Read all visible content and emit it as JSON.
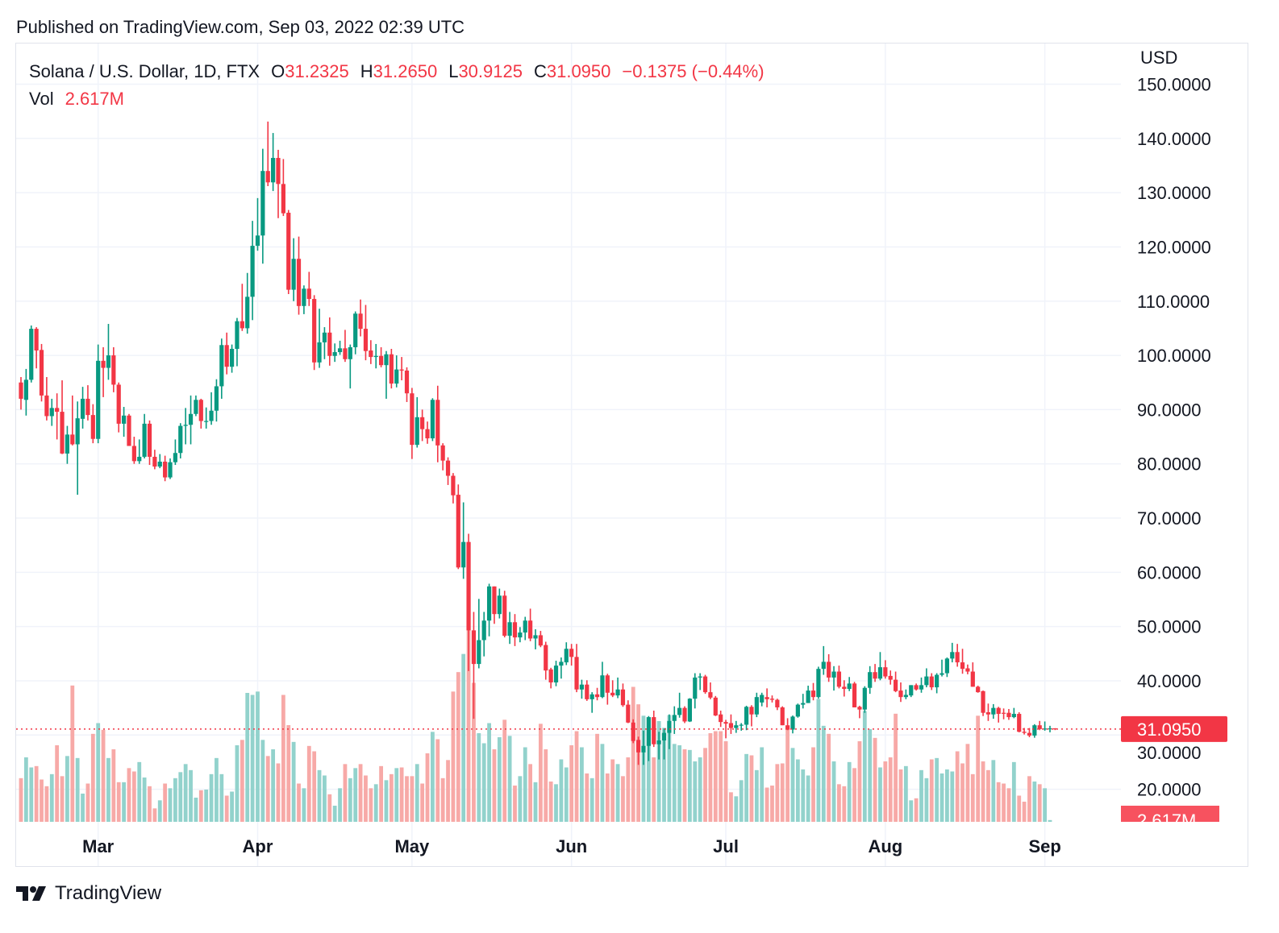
{
  "header": {
    "published": "Published on TradingView.com, Sep 03, 2022 02:39 UTC"
  },
  "legend": {
    "symbol": "Solana / U.S. Dollar, 1D, FTX",
    "open_label": "O",
    "open": "31.2325",
    "high_label": "H",
    "high": "31.2650",
    "low_label": "L",
    "low": "30.9125",
    "close_label": "C",
    "close": "31.0950",
    "change": "−0.1375 (−0.44%)",
    "vol_label": "Vol",
    "vol": "2.617M"
  },
  "price_axis": {
    "currency": "USD",
    "last_price_badge": "31.0950",
    "last_volume_badge": "2.617M"
  },
  "footer": {
    "brand": "TradingView"
  },
  "colors": {
    "up": "#089981",
    "down": "#f23645",
    "up_volume": "#92d2cc",
    "down_volume": "#f7a9a7",
    "grid": "#f0f3fa",
    "text": "#131722"
  },
  "chart_data": {
    "type": "candlestick",
    "title": "Solana / U.S. Dollar, 1D, FTX",
    "first_date": "2022-02-14",
    "last_date": "2022-09-03",
    "interval": "1D",
    "ylim": [
      14,
      157.5
    ],
    "y_ticks": [
      20,
      30,
      40,
      50,
      60,
      70,
      80,
      90,
      100,
      110,
      120,
      130,
      140,
      150
    ],
    "y_tick_labels": [
      "20.0000",
      "30.0000",
      "40.0000",
      "50.0000",
      "60.0000",
      "70.0000",
      "80.0000",
      "90.0000",
      "100.0000",
      "110.0000",
      "120.0000",
      "130.0000",
      "140.0000",
      "150.0000"
    ],
    "x_ticks": [
      {
        "label": "Mar",
        "index": 15
      },
      {
        "label": "Apr",
        "index": 46
      },
      {
        "label": "May",
        "index": 76
      },
      {
        "label": "Jun",
        "index": 107
      },
      {
        "label": "Jul",
        "index": 137
      },
      {
        "label": "Aug",
        "index": 168
      },
      {
        "label": "Sep",
        "index": 199
      }
    ],
    "grid": true,
    "last_price": 31.095,
    "ohlc": [
      [
        95,
        96,
        90,
        92
      ],
      [
        91.8,
        97.5,
        88.9,
        95.5
      ],
      [
        95.5,
        105.5,
        95,
        104.9
      ],
      [
        104.9,
        105.2,
        97.6,
        100.9
      ],
      [
        101,
        102.1,
        91.5,
        92.6
      ],
      [
        92.6,
        96,
        88,
        88.8
      ],
      [
        88.8,
        92,
        87,
        90.3
      ],
      [
        90.3,
        93,
        84.5,
        89.6
      ],
      [
        89.6,
        95.4,
        81.8,
        81.9
      ],
      [
        81.9,
        87,
        80,
        85.4
      ],
      [
        85.4,
        92.6,
        83.4,
        83.6
      ],
      [
        83.6,
        91.5,
        74.3,
        88.4
      ],
      [
        88.3,
        94.2,
        86.5,
        92
      ],
      [
        92,
        94.5,
        88,
        89
      ],
      [
        89,
        91,
        83.8,
        84.6
      ],
      [
        84.6,
        102,
        83.8,
        99
      ],
      [
        99,
        101.5,
        92.3,
        97.7
      ],
      [
        97.7,
        105.8,
        95.5,
        100
      ],
      [
        100,
        101.5,
        93.2,
        94.6
      ],
      [
        94.6,
        95,
        85.8,
        87.4
      ],
      [
        87.4,
        90.5,
        85,
        88.9
      ],
      [
        88.9,
        89.2,
        84,
        83.3
      ],
      [
        83.3,
        85,
        80,
        80.5
      ],
      [
        80.5,
        84.5,
        80,
        81.3
      ],
      [
        81.3,
        89.2,
        81,
        87.4
      ],
      [
        87.4,
        88,
        79.8,
        81.3
      ],
      [
        81.3,
        82.6,
        79,
        79.5
      ],
      [
        79.5,
        81.8,
        79.2,
        80.4
      ],
      [
        80.4,
        81.5,
        76.8,
        77.5
      ],
      [
        77.5,
        81,
        77.2,
        80.3
      ],
      [
        80.3,
        84.5,
        79.8,
        82
      ],
      [
        82,
        87.5,
        81,
        87
      ],
      [
        87,
        90.3,
        83.6,
        87.2
      ],
      [
        87.2,
        92.6,
        83.6,
        89.2
      ],
      [
        89.2,
        92.6,
        88.8,
        91.8
      ],
      [
        91.8,
        92,
        86.5,
        87.9
      ],
      [
        87.9,
        90.4,
        86.5,
        87.9
      ],
      [
        87.9,
        93.2,
        87.2,
        89.8
      ],
      [
        89.8,
        95.6,
        87.8,
        94.3
      ],
      [
        94.3,
        103.1,
        92,
        101.9
      ],
      [
        101.9,
        104.2,
        96.5,
        97.9
      ],
      [
        97.9,
        102,
        96.8,
        101.2
      ],
      [
        101.2,
        106.9,
        98,
        106.3
      ],
      [
        106.3,
        113.2,
        104.5,
        105
      ],
      [
        105,
        115.2,
        104,
        110.8
      ],
      [
        110.8,
        124.8,
        106.5,
        120.2
      ],
      [
        120.2,
        129,
        119.3,
        122.1
      ],
      [
        122.1,
        138.1,
        116.9,
        134
      ],
      [
        134,
        143.1,
        131.2,
        131.9
      ],
      [
        131.9,
        141,
        130.3,
        136.4
      ],
      [
        136.4,
        137.9,
        125.3,
        131.6
      ],
      [
        131.6,
        136.2,
        125.7,
        126.2
      ],
      [
        126.3,
        126.8,
        111.3,
        112.1
      ],
      [
        112.1,
        121.6,
        110,
        117.8
      ],
      [
        117.8,
        121.9,
        107.5,
        109.1
      ],
      [
        109.1,
        112.9,
        107.6,
        112.3
      ],
      [
        112.3,
        115.4,
        109.1,
        110.4
      ],
      [
        110.4,
        111.1,
        97.3,
        98.7
      ],
      [
        98.7,
        108.6,
        97.7,
        102.4
      ],
      [
        102.4,
        105.2,
        99.3,
        104.2
      ],
      [
        104.2,
        107,
        98.1,
        99.9
      ],
      [
        99.9,
        102.2,
        98.8,
        100.6
      ],
      [
        100.6,
        102.7,
        100.1,
        101.3
      ],
      [
        101.3,
        104.7,
        98.8,
        99.3
      ],
      [
        99.3,
        102,
        93.9,
        101.5
      ],
      [
        101.5,
        108.1,
        100.2,
        107.7
      ],
      [
        107.7,
        110.3,
        103.5,
        104.9
      ],
      [
        104.9,
        109.3,
        99.1,
        100.8
      ],
      [
        100.9,
        102.8,
        98.4,
        99.7
      ],
      [
        99.7,
        102.1,
        97.6,
        99.9
      ],
      [
        99.9,
        101.5,
        97.8,
        98.2
      ],
      [
        98.2,
        100.8,
        92,
        100.2
      ],
      [
        100.2,
        101.2,
        93.9,
        94.8
      ],
      [
        94.8,
        100,
        94.1,
        97.4
      ],
      [
        97.4,
        99.7,
        95.4,
        97.2
      ],
      [
        97.2,
        97.8,
        91.4,
        93
      ],
      [
        93,
        94,
        80.9,
        83.5
      ],
      [
        83.5,
        92.3,
        83,
        88.6
      ],
      [
        88.6,
        90,
        84.2,
        86.4
      ],
      [
        86.4,
        87.8,
        83.7,
        84.7
      ],
      [
        84.7,
        92.1,
        84.2,
        91.8
      ],
      [
        91.8,
        94.4,
        80.3,
        83.4
      ],
      [
        83.4,
        83.8,
        78.8,
        80.6
      ],
      [
        80.6,
        81.2,
        76.1,
        77.8
      ],
      [
        77.8,
        78.3,
        72.7,
        74.2
      ],
      [
        74.3,
        76.2,
        60.6,
        60.9
      ],
      [
        60.9,
        72.9,
        58.8,
        65.6
      ],
      [
        65.6,
        67.1,
        41.8,
        49.3
      ],
      [
        49.3,
        52.7,
        33,
        43.1
      ],
      [
        43.1,
        55.1,
        42.3,
        47.5
      ],
      [
        47.5,
        52.7,
        44.5,
        51.1
      ],
      [
        51.1,
        57.9,
        48.2,
        57.4
      ],
      [
        57.4,
        57.4,
        50.5,
        52.3
      ],
      [
        52.3,
        57,
        51.5,
        55.7
      ],
      [
        55.7,
        56.6,
        48,
        48.3
      ],
      [
        48.3,
        52.7,
        46.8,
        50.8
      ],
      [
        50.8,
        52.3,
        46.4,
        48
      ],
      [
        48,
        49.9,
        47.1,
        48.9
      ],
      [
        48.9,
        51.8,
        47.5,
        51.1
      ],
      [
        51.1,
        53.3,
        47.3,
        47.8
      ],
      [
        47.8,
        49.5,
        45.8,
        48.4
      ],
      [
        48.4,
        49.2,
        46.2,
        46.5
      ],
      [
        46.6,
        47.2,
        40.2,
        41.9
      ],
      [
        42.1,
        42.4,
        38.6,
        39.7
      ],
      [
        39.7,
        43.7,
        39,
        42.8
      ],
      [
        42.8,
        44.3,
        40.4,
        43.5
      ],
      [
        43.4,
        47.1,
        42.9,
        45.9
      ],
      [
        45.9,
        46.8,
        42.8,
        44.4
      ],
      [
        44.4,
        46.8,
        37.9,
        38.4
      ],
      [
        38.4,
        40.2,
        36.7,
        39.3
      ],
      [
        39.3,
        40.1,
        36.3,
        36.6
      ],
      [
        36.6,
        37.9,
        34.1,
        37.5
      ],
      [
        37.5,
        38.7,
        36.4,
        37
      ],
      [
        37,
        43.5,
        36.8,
        41
      ],
      [
        41,
        41.3,
        35.6,
        37.8
      ],
      [
        37.8,
        40.1,
        37,
        37.3
      ],
      [
        37.3,
        40.6,
        36.8,
        38.4
      ],
      [
        38.4,
        39.5,
        35.2,
        35.5
      ],
      [
        35.6,
        36.4,
        32.2,
        32.3
      ],
      [
        32.3,
        32.9,
        28.5,
        28.9
      ],
      [
        29.1,
        29.7,
        24.5,
        26.8
      ],
      [
        26.8,
        30.8,
        24.5,
        28
      ],
      [
        28,
        33.5,
        25.2,
        33.3
      ],
      [
        33.3,
        34.5,
        27.8,
        28.3
      ],
      [
        28.3,
        30.6,
        25.5,
        29
      ],
      [
        29,
        31.2,
        25.5,
        30.4
      ],
      [
        30.4,
        33.8,
        27.4,
        32.6
      ],
      [
        32.6,
        35.3,
        30.2,
        33.7
      ],
      [
        33.7,
        37.8,
        33.2,
        35
      ],
      [
        35,
        35.3,
        32.2,
        32.5
      ],
      [
        32.5,
        36.8,
        32.4,
        36.7
      ],
      [
        36.7,
        41.4,
        34.9,
        40.6
      ],
      [
        40.6,
        41.4,
        38.3,
        40.8
      ],
      [
        40.8,
        41.1,
        37.6,
        37.9
      ],
      [
        37.9,
        39.7,
        36.6,
        36.9
      ],
      [
        36.9,
        37.2,
        33.5,
        33.6
      ],
      [
        33.8,
        34.5,
        31.5,
        32.4
      ],
      [
        32.4,
        32.8,
        29.4,
        32.1
      ],
      [
        32.2,
        33.8,
        30.2,
        31.3
      ],
      [
        31.3,
        32.6,
        30.4,
        31.8
      ],
      [
        31.8,
        32.2,
        30.8,
        31.9
      ],
      [
        31.9,
        35.4,
        30.9,
        35.2
      ],
      [
        35.2,
        35.5,
        31.6,
        33.8
      ],
      [
        33.8,
        37.8,
        33.3,
        37
      ],
      [
        36,
        37.8,
        35.3,
        37.4
      ],
      [
        37,
        38.6,
        35.1,
        36.6
      ],
      [
        36.7,
        37.3,
        36,
        36.5
      ],
      [
        36.5,
        36.7,
        34.6,
        35.1
      ],
      [
        35.1,
        35.3,
        31.8,
        31.8
      ],
      [
        31.8,
        33.1,
        30.9,
        31
      ],
      [
        31,
        33.6,
        30.3,
        33.4
      ],
      [
        33.4,
        35.8,
        33.2,
        35.6
      ],
      [
        35.6,
        37.6,
        34.9,
        35.9
      ],
      [
        35.9,
        39.1,
        35.9,
        38.2
      ],
      [
        38.2,
        39.6,
        36.4,
        37
      ],
      [
        37,
        42.6,
        36.7,
        42.2
      ],
      [
        42.2,
        46.4,
        41.1,
        43.5
      ],
      [
        43.5,
        44.9,
        39.8,
        40.6
      ],
      [
        40.6,
        42.7,
        38.2,
        41.7
      ],
      [
        41.7,
        42.8,
        38.6,
        38.9
      ],
      [
        38.9,
        40.1,
        37.1,
        38.5
      ],
      [
        38.5,
        40.7,
        38.1,
        39.5
      ],
      [
        39.5,
        39.8,
        35.1,
        35.1
      ],
      [
        35.2,
        35.4,
        33.1,
        34.7
      ],
      [
        34.7,
        39,
        34.1,
        38.7
      ],
      [
        38.7,
        42.7,
        37.6,
        41.6
      ],
      [
        41.6,
        43.1,
        39.8,
        40.4
      ],
      [
        40.4,
        45.3,
        40.1,
        42.5
      ],
      [
        42.5,
        43.8,
        40.4,
        40.8
      ],
      [
        40.9,
        41.9,
        39.3,
        40.2
      ],
      [
        40.2,
        41.7,
        37.9,
        38.1
      ],
      [
        38.2,
        39.7,
        36.1,
        37
      ],
      [
        37,
        38.4,
        36.6,
        37.4
      ],
      [
        37.3,
        39.2,
        37,
        39.2
      ],
      [
        39.2,
        39.5,
        38.2,
        38.4
      ],
      [
        38.4,
        40.6,
        37.8,
        39.2
      ],
      [
        39.2,
        42.3,
        38.8,
        40.8
      ],
      [
        40.8,
        41.4,
        38.3,
        38.8
      ],
      [
        38.8,
        41.4,
        37.7,
        41.1
      ],
      [
        41.1,
        43.9,
        40.8,
        41.4
      ],
      [
        41.4,
        44.3,
        40.7,
        44.1
      ],
      [
        44.1,
        47,
        43.4,
        45.3
      ],
      [
        45.3,
        46.8,
        42.6,
        43.4
      ],
      [
        43.4,
        45.9,
        41.3,
        42.2
      ],
      [
        42.3,
        43,
        41.2,
        41.7
      ],
      [
        41.7,
        43.4,
        38.9,
        38.9
      ],
      [
        38.9,
        39.1,
        37.8,
        37.9
      ],
      [
        38.1,
        38.2,
        33.5,
        34.1
      ],
      [
        34.2,
        35.8,
        32.6,
        33.8
      ],
      [
        33.8,
        35.7,
        33,
        35
      ],
      [
        35,
        35.2,
        32.3,
        33.9
      ],
      [
        34.1,
        34.9,
        32.9,
        34
      ],
      [
        34.1,
        34.8,
        32.8,
        33.3
      ],
      [
        33.3,
        35,
        33.1,
        33.9
      ],
      [
        33.9,
        34.2,
        30.5,
        30.6
      ],
      [
        30.6,
        31.3,
        30.1,
        30.4
      ],
      [
        30.4,
        31.3,
        29.6,
        29.9
      ],
      [
        29.9,
        32,
        29.5,
        31.8
      ],
      [
        31.8,
        32.6,
        30.9,
        31.1
      ],
      [
        31.1,
        32.5,
        30.8,
        31.2
      ],
      [
        31.1,
        31.7,
        30.5,
        31.2325
      ],
      [
        31.2325,
        31.265,
        30.9125,
        31.095
      ]
    ],
    "volume_millions": [
      65,
      96,
      81,
      83,
      63,
      53,
      71,
      114,
      68,
      98,
      203,
      95,
      42,
      57,
      131,
      147,
      137,
      95,
      108,
      59,
      59,
      80,
      75,
      89,
      66,
      53,
      20,
      32,
      57,
      50,
      65,
      74,
      86,
      77,
      36,
      47,
      48,
      71,
      95,
      71,
      39,
      45,
      114,
      122,
      192,
      189,
      194,
      122,
      98,
      108,
      87,
      189,
      144,
      119,
      57,
      50,
      113,
      105,
      77,
      69,
      41,
      24,
      50,
      86,
      65,
      80,
      86,
      69,
      50,
      56,
      83,
      62,
      71,
      80,
      81,
      68,
      68,
      86,
      57,
      102,
      134,
      123,
      65,
      92,
      194,
      223,
      250,
      380,
      207,
      132,
      117,
      147,
      108,
      126,
      152,
      128,
      54,
      68,
      111,
      86,
      59,
      146,
      108,
      60,
      56,
      93,
      81,
      114,
      135,
      111,
      72,
      65,
      131,
      116,
      72,
      93,
      86,
      68,
      96,
      201,
      175,
      158,
      144,
      96,
      150,
      140,
      159,
      116,
      114,
      108,
      107,
      90,
      96,
      110,
      132,
      135,
      135,
      120,
      44,
      38,
      62,
      101,
      99,
      77,
      111,
      51,
      54,
      86,
      87,
      140,
      110,
      93,
      78,
      69,
      111,
      183,
      143,
      131,
      90,
      56,
      53,
      89,
      80,
      120,
      165,
      138,
      125,
      81,
      90,
      96,
      161,
      78,
      83,
      32,
      35,
      77,
      65,
      93,
      95,
      72,
      78,
      75,
      105,
      87,
      116,
      71,
      158,
      90,
      77,
      92,
      59,
      57,
      50,
      89,
      39,
      30,
      68,
      60,
      56,
      50,
      2.617
    ]
  }
}
